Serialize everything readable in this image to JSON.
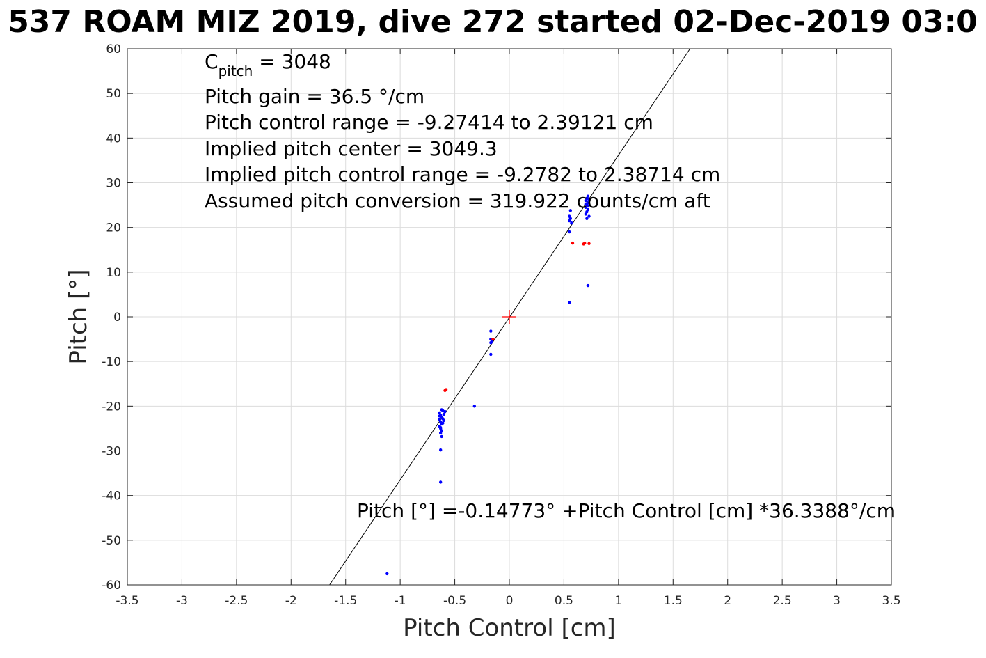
{
  "chart_data": {
    "type": "scatter",
    "title": "537 ROAM MIZ 2019, dive 272 started 02-Dec-2019 03:0",
    "xlabel": "Pitch Control [cm]",
    "ylabel": "Pitch [°]",
    "xlim": [
      -3.5,
      3.5
    ],
    "ylim": [
      -60,
      60
    ],
    "grid": true,
    "x_ticks": [
      -3.5,
      -3,
      -2.5,
      -2,
      -1.5,
      -1,
      -0.5,
      0,
      0.5,
      1,
      1.5,
      2,
      2.5,
      3,
      3.5
    ],
    "y_ticks": [
      -60,
      -50,
      -40,
      -30,
      -20,
      -10,
      0,
      10,
      20,
      30,
      40,
      50,
      60
    ],
    "x_tick_labels": [
      "-3.5",
      "-3",
      "-2.5",
      "-2",
      "-1.5",
      "-1",
      "-0.5",
      "0",
      "0.5",
      "1",
      "1.5",
      "2",
      "2.5",
      "3",
      "3.5"
    ],
    "y_tick_labels": [
      "-60",
      "-50",
      "-40",
      "-30",
      "-20",
      "-10",
      "0",
      "10",
      "20",
      "30",
      "40",
      "50",
      "60"
    ],
    "annotations_top": {
      "c_main": "C",
      "c_sub": "pitch",
      "c_value": " = 3048",
      "line2": "Pitch gain = 36.5 °/cm",
      "line3": "Pitch control range = -9.27414 to 2.39121 cm",
      "line4": "Implied pitch center = 3049.3",
      "line5": "Implied pitch control range = -9.2782 to 2.38714 cm",
      "line6": "Assumed pitch conversion = 319.922 counts/cm aft"
    },
    "fit_equation": "Pitch [°] =-0.14773° +Pitch Control [cm] *36.3388°/cm",
    "fit_line": {
      "intercept": -0.14773,
      "slope": 36.3388,
      "color": "#000000"
    },
    "center_marker": {
      "x": 0,
      "y": 0,
      "color": "#ff0000"
    },
    "series": [
      {
        "color": "#0000ff",
        "points": [
          [
            -0.64,
            -21.5
          ],
          [
            -0.63,
            -22.0
          ],
          [
            -0.62,
            -22.5
          ],
          [
            -0.64,
            -23.0
          ],
          [
            -0.63,
            -23.5
          ],
          [
            -0.62,
            -24.0
          ],
          [
            -0.64,
            -24.5
          ],
          [
            -0.63,
            -25.0
          ],
          [
            -0.62,
            -25.5
          ],
          [
            -0.63,
            -26.0
          ],
          [
            -0.61,
            -21.0
          ],
          [
            -0.6,
            -21.8
          ],
          [
            -0.61,
            -22.8
          ],
          [
            -0.6,
            -23.2
          ],
          [
            -0.62,
            -20.8
          ],
          [
            -0.59,
            -21.2
          ],
          [
            -0.63,
            -24.8
          ],
          [
            -0.64,
            -22.2
          ],
          [
            -0.61,
            -23.8
          ],
          [
            -0.62,
            -26.8
          ],
          [
            -0.63,
            -29.8
          ],
          [
            -0.63,
            -37.0
          ],
          [
            -0.32,
            -20.0
          ],
          [
            -0.17,
            -3.2
          ],
          [
            -0.17,
            -5.0
          ],
          [
            -0.16,
            -5.5
          ],
          [
            -0.17,
            -5.8
          ],
          [
            -0.17,
            -8.4
          ],
          [
            0.55,
            21.5
          ],
          [
            0.56,
            22.0
          ],
          [
            0.55,
            22.5
          ],
          [
            0.57,
            21.0
          ],
          [
            0.56,
            23.8
          ],
          [
            0.55,
            19.0
          ],
          [
            0.55,
            3.2
          ],
          [
            0.7,
            23.0
          ],
          [
            0.71,
            23.5
          ],
          [
            0.72,
            24.0
          ],
          [
            0.7,
            24.5
          ],
          [
            0.71,
            25.0
          ],
          [
            0.72,
            25.5
          ],
          [
            0.7,
            26.0
          ],
          [
            0.71,
            26.5
          ],
          [
            0.72,
            27.0
          ],
          [
            0.73,
            22.5
          ],
          [
            0.71,
            22.0
          ],
          [
            0.72,
            24.8
          ],
          [
            0.73,
            26.2
          ],
          [
            0.7,
            25.2
          ],
          [
            0.72,
            7.0
          ],
          [
            -1.12,
            -57.5
          ]
        ]
      },
      {
        "color": "#ff0000",
        "points": [
          [
            -0.58,
            -16.3
          ],
          [
            -0.59,
            -16.5
          ],
          [
            -0.15,
            -5.0
          ],
          [
            0.58,
            16.5
          ],
          [
            0.68,
            16.3
          ],
          [
            0.69,
            16.5
          ],
          [
            0.73,
            16.4
          ]
        ]
      }
    ]
  }
}
